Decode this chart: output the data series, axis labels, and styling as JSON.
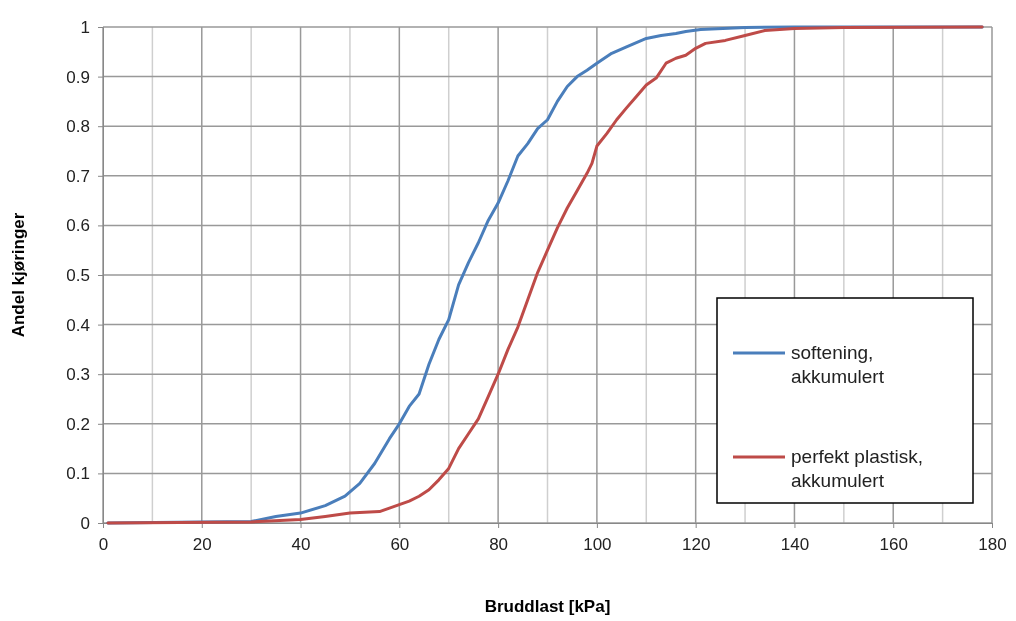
{
  "chart_data": {
    "type": "line",
    "xlabel": "Bruddlast [kPa]",
    "ylabel": "Andel kjøringer",
    "xlim": [
      0,
      180
    ],
    "xticks": [
      0,
      20,
      40,
      60,
      80,
      100,
      120,
      140,
      160,
      180
    ],
    "ylim": [
      0,
      1
    ],
    "yticks": [
      0,
      0.1,
      0.2,
      0.3,
      0.4,
      0.5,
      0.6,
      0.7,
      0.8,
      0.9,
      1
    ],
    "grid": true,
    "legend": "bottom right",
    "marker": "none",
    "line_style": "solid",
    "series": [
      {
        "name": "softening, akkumulert",
        "color": "#4a7ebb",
        "x": [
          1,
          20,
          30,
          35,
          40,
          45,
          49,
          52,
          55,
          58,
          60,
          62,
          64,
          66,
          68,
          70,
          72,
          74,
          76,
          78,
          80,
          82,
          84,
          86,
          88,
          90,
          92,
          94,
          96,
          98,
          100,
          103,
          106,
          110,
          113,
          116,
          118,
          121,
          130,
          140,
          178
        ],
        "values": [
          0,
          0.002,
          0.003,
          0.013,
          0.02,
          0.035,
          0.054,
          0.08,
          0.12,
          0.17,
          0.2,
          0.235,
          0.26,
          0.32,
          0.37,
          0.41,
          0.48,
          0.525,
          0.565,
          0.61,
          0.645,
          0.69,
          0.74,
          0.765,
          0.795,
          0.813,
          0.85,
          0.88,
          0.9,
          0.913,
          0.927,
          0.947,
          0.96,
          0.977,
          0.983,
          0.987,
          0.991,
          0.995,
          0.999,
          1,
          1
        ]
      },
      {
        "name": "perfekt plastisk, akkumulert",
        "color": "#be4b48",
        "x": [
          1,
          30,
          40,
          45,
          50,
          56,
          58,
          60,
          62,
          64,
          66,
          68,
          70,
          72,
          74,
          76,
          78,
          80,
          82,
          84,
          86,
          88,
          90,
          92,
          94,
          96,
          98,
          99,
          100,
          102,
          104,
          106,
          108,
          110,
          112,
          114,
          116,
          118,
          120,
          122,
          126,
          130,
          134,
          140,
          150,
          178
        ],
        "values": [
          0,
          0.002,
          0.007,
          0.013,
          0.02,
          0.023,
          0.03,
          0.037,
          0.044,
          0.054,
          0.067,
          0.087,
          0.11,
          0.15,
          0.18,
          0.21,
          0.255,
          0.3,
          0.35,
          0.395,
          0.45,
          0.505,
          0.55,
          0.595,
          0.635,
          0.67,
          0.705,
          0.725,
          0.76,
          0.785,
          0.813,
          0.837,
          0.86,
          0.883,
          0.897,
          0.927,
          0.937,
          0.943,
          0.957,
          0.967,
          0.973,
          0.983,
          0.993,
          0.997,
          0.999,
          1
        ]
      }
    ]
  }
}
